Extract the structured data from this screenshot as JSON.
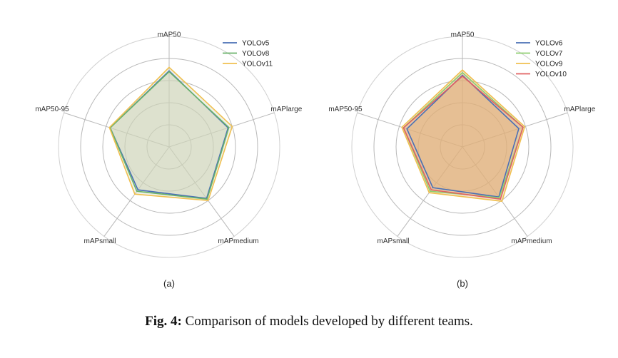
{
  "caption": {
    "prefix": "Fig. 4:",
    "text": "Comparison of models developed by different teams."
  },
  "chart_data": [
    {
      "type": "radar",
      "panel_label": "(a)",
      "axes": [
        "mAP50",
        "mAPlarge",
        "mAPmedium",
        "mAPsmall",
        "mAP50-95"
      ],
      "rlim": [
        0,
        1
      ],
      "grid": true,
      "legend_position": "top-right",
      "series": [
        {
          "name": "YOLOv5",
          "color": "#4a6fb5",
          "fill": "#cfd3b8",
          "values": [
            0.86,
            0.7,
            0.72,
            0.6,
            0.7
          ]
        },
        {
          "name": "YOLOv8",
          "color": "#6ab36a",
          "fill": "#cfd3b8",
          "values": [
            0.85,
            0.71,
            0.73,
            0.62,
            0.7
          ]
        },
        {
          "name": "YOLOv11",
          "color": "#f0c050",
          "fill": "#cfd3b8",
          "values": [
            0.9,
            0.75,
            0.75,
            0.66,
            0.71
          ]
        }
      ]
    },
    {
      "type": "radar",
      "panel_label": "(b)",
      "axes": [
        "mAP50",
        "mAPlarge",
        "mAPmedium",
        "mAPsmall",
        "mAP50-95"
      ],
      "rlim": [
        0,
        1
      ],
      "grid": true,
      "legend_position": "top-right",
      "series": [
        {
          "name": "YOLOv6",
          "color": "#4a6fb5",
          "fill": "#e0b07a",
          "values": [
            0.81,
            0.67,
            0.7,
            0.57,
            0.66
          ]
        },
        {
          "name": "YOLOv7",
          "color": "#8fcf70",
          "fill": "#e0b07a",
          "values": [
            0.84,
            0.72,
            0.71,
            0.62,
            0.7
          ]
        },
        {
          "name": "YOLOv9",
          "color": "#f0c050",
          "fill": "#e0b07a",
          "values": [
            0.87,
            0.74,
            0.76,
            0.64,
            0.72
          ]
        },
        {
          "name": "YOLOv10",
          "color": "#e06060",
          "fill": "#e0b07a",
          "values": [
            0.8,
            0.72,
            0.73,
            0.6,
            0.7
          ]
        }
      ]
    }
  ]
}
